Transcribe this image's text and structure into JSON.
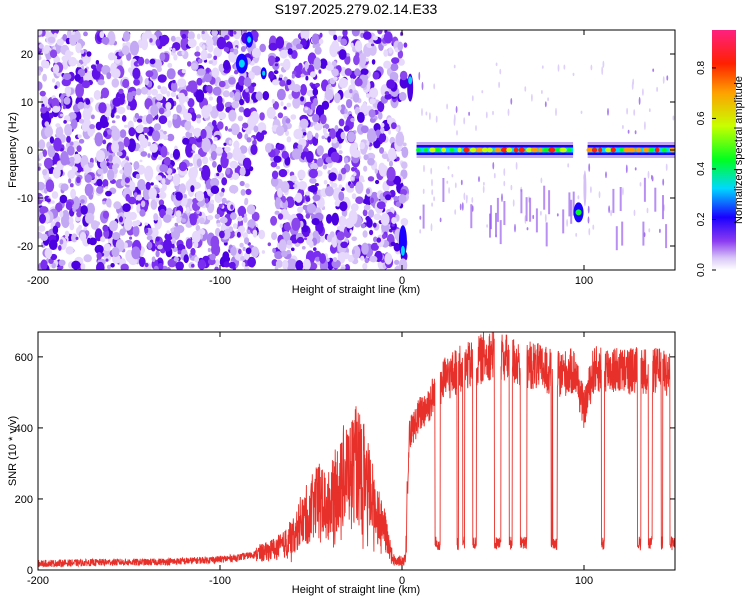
{
  "title": "S197.2025.279.02.14.E33",
  "colors": {
    "snr_line": "#e8302a",
    "frame": "#000000",
    "colorbar": [
      "#ffffff",
      "#c6a6f4",
      "#7a2ef0",
      "#1a00ff",
      "#00d8ff",
      "#00ff20",
      "#c8ff00",
      "#ffa000",
      "#ff2000",
      "#ff2080"
    ]
  },
  "chart_data": [
    {
      "type": "heatmap",
      "name": "spectrogram",
      "title": "S197.2025.279.02.14.E33",
      "xlabel": "Height of straight line (km)",
      "ylabel": "Frequency (Hz)",
      "xlim": [
        -200,
        150
      ],
      "ylim": [
        -25,
        25
      ],
      "xticks": [
        -200,
        -100,
        0,
        100
      ],
      "xtick_labels": [
        "-200",
        "-100",
        "0",
        "100"
      ],
      "yticks": [
        -20,
        -10,
        0,
        10,
        20
      ],
      "ytick_labels": [
        "-20",
        "-10",
        "0",
        "10",
        "20"
      ],
      "colorbar": {
        "label": "Normalized spectral amplitude",
        "range": [
          0,
          0.95
        ],
        "ticks": [
          0.0,
          0.2,
          0.4,
          0.6,
          0.8
        ],
        "tick_labels": [
          "0.0",
          "0.2",
          "0.4",
          "0.6",
          "0.8"
        ]
      },
      "features": [
        {
          "desc": "scattered noise speckle",
          "x_range": [
            -200,
            2
          ],
          "freq_range": [
            -25,
            25
          ],
          "amplitude": 0.1
        },
        {
          "desc": "gap in noise",
          "x_range": [
            -80,
            -72
          ],
          "freq_range": [
            -25,
            25
          ],
          "amplitude": 0.0
        },
        {
          "desc": "high-frequency burst",
          "x_range": [
            -90,
            -70
          ],
          "freq_range": [
            14,
            25
          ],
          "amplitude": 0.35
        },
        {
          "desc": "low-frequency burst",
          "x_range": [
            -2,
            3
          ],
          "freq_range": [
            -25,
            -15
          ],
          "amplitude": 0.35
        },
        {
          "desc": "upper burst near zero",
          "x_range": [
            3,
            7
          ],
          "freq_range": [
            8,
            18
          ],
          "amplitude": 0.3
        },
        {
          "desc": "carrier at 0 Hz",
          "x_range": [
            8,
            94
          ],
          "freq": 0,
          "amplitude": 0.9
        },
        {
          "desc": "dropout",
          "x_range": [
            94,
            102
          ],
          "freq_range": [
            -20,
            -8
          ],
          "amplitude": 0.45
        },
        {
          "desc": "carrier at 0 Hz",
          "x_range": [
            102,
            150
          ],
          "freq": 0,
          "amplitude": 0.9
        }
      ]
    },
    {
      "type": "line",
      "name": "snr",
      "xlabel": "Height of straight line (km)",
      "ylabel": "SNR (10 * v/v)",
      "xlim": [
        -200,
        150
      ],
      "ylim": [
        0,
        670
      ],
      "xticks": [
        -200,
        -100,
        0,
        100
      ],
      "xtick_labels": [
        "-200",
        "-100",
        "0",
        "100"
      ],
      "yticks": [
        0,
        200,
        400,
        600
      ],
      "ytick_labels": [
        "0",
        "200",
        "400",
        "600"
      ],
      "series": [
        {
          "name": "SNR",
          "x": [
            -200,
            -180,
            -160,
            -140,
            -120,
            -100,
            -90,
            -80,
            -75,
            -70,
            -65,
            -60,
            -55,
            -50,
            -45,
            -40,
            -35,
            -30,
            -25,
            -20,
            -15,
            -10,
            -5,
            0,
            2,
            4,
            8,
            10,
            15,
            20,
            25,
            30,
            35,
            40,
            45,
            50,
            55,
            60,
            65,
            70,
            75,
            80,
            85,
            90,
            95,
            100,
            105,
            110,
            115,
            120,
            125,
            130,
            135,
            140,
            145,
            150
          ],
          "values": [
            18,
            20,
            22,
            22,
            25,
            30,
            35,
            45,
            50,
            60,
            70,
            100,
            140,
            170,
            200,
            180,
            240,
            280,
            300,
            260,
            180,
            120,
            30,
            25,
            30,
            380,
            420,
            440,
            470,
            520,
            540,
            560,
            570,
            580,
            600,
            610,
            600,
            590,
            585,
            580,
            570,
            560,
            550,
            555,
            560,
            450,
            560,
            570,
            565,
            560,
            560,
            565,
            560,
            560,
            555,
            560
          ]
        }
      ],
      "dropouts": [
        {
          "x_range": [
            5,
            150
          ],
          "low_value": 70,
          "desc": "frequent sharp drops to ~60-100"
        }
      ]
    }
  ]
}
